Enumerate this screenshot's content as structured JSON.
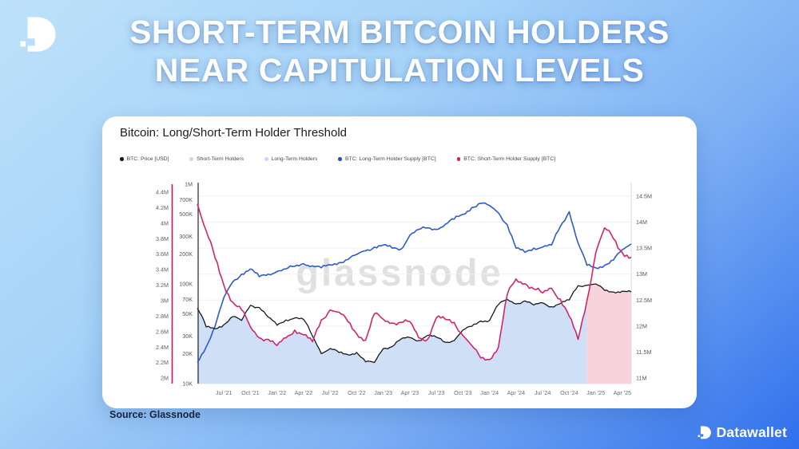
{
  "header": {
    "title_line1": "SHORT-TERM BITCOIN HOLDERS",
    "title_line2": "NEAR CAPITULATION LEVELS"
  },
  "card": {
    "title": "Bitcoin: Long/Short-Term Holder Threshold",
    "watermark": "glassnode"
  },
  "legend": {
    "items": [
      {
        "label": "BTC: Price [USD]",
        "color": "#17181c"
      },
      {
        "label": "Short-Term Holders",
        "color": "#f0ccd6"
      },
      {
        "label": "Long-Term Holders",
        "color": "#c9d9f3"
      },
      {
        "label": "BTC: Long-Term Holder Supply [BTC]",
        "color": "#2450c0"
      },
      {
        "label": "BTC: Short-Term Holder Supply [BTC]",
        "color": "#d02568"
      }
    ]
  },
  "footer": {
    "source": "Source: Glassnode",
    "brand": "Datawallet"
  },
  "chart_data": {
    "type": "line",
    "time": {
      "start": "2021-04",
      "end": "2025-05",
      "interval": "monthly"
    },
    "x_tick_labels": [
      "Jul '21",
      "Oct '21",
      "Jan '22",
      "Apr '22",
      "Jul '22",
      "Oct '22",
      "Jan '23",
      "Apr '23",
      "Jul '23",
      "Oct '23",
      "Jan '24",
      "Apr '24",
      "Jul '24",
      "Oct '24",
      "Jan '25",
      "Apr '25"
    ],
    "axes": {
      "left_outer": {
        "name": "BTC: Short-Term Holder Supply [BTC]",
        "unit": "million BTC",
        "scale": "linear",
        "range": [
          2.0,
          4.4
        ],
        "color": "#c2185b",
        "ticks": [
          {
            "label": "4.4M",
            "v": 4.4
          },
          {
            "label": "4.2M",
            "v": 4.2
          },
          {
            "label": "4M",
            "v": 4.0
          },
          {
            "label": "3.8M",
            "v": 3.8
          },
          {
            "label": "3.6M",
            "v": 3.6
          },
          {
            "label": "3.4M",
            "v": 3.4
          },
          {
            "label": "3.2M",
            "v": 3.2
          },
          {
            "label": "3M",
            "v": 3.0
          },
          {
            "label": "2.8M",
            "v": 2.8
          },
          {
            "label": "2.6M",
            "v": 2.6
          },
          {
            "label": "2.4M",
            "v": 2.4
          },
          {
            "label": "2.2M",
            "v": 2.2
          },
          {
            "label": "2M",
            "v": 2.0
          }
        ]
      },
      "left_inner": {
        "name": "BTC: Price [USD]",
        "scale": "log",
        "range": [
          10000,
          1000000
        ],
        "ticks": [
          {
            "label": "1M",
            "v": 1000000
          },
          {
            "label": "700K",
            "v": 700000
          },
          {
            "label": "500K",
            "v": 500000
          },
          {
            "label": "300K",
            "v": 300000
          },
          {
            "label": "200K",
            "v": 200000
          },
          {
            "label": "100K",
            "v": 100000
          },
          {
            "label": "70K",
            "v": 70000
          },
          {
            "label": "50K",
            "v": 50000
          },
          {
            "label": "30K",
            "v": 30000
          },
          {
            "label": "20K",
            "v": 20000
          },
          {
            "label": "10K",
            "v": 10000
          }
        ]
      },
      "right": {
        "name": "BTC: Long-Term Holder Supply [BTC]",
        "unit": "million BTC",
        "scale": "linear",
        "range": [
          11.0,
          14.5
        ],
        "ticks": [
          {
            "label": "14.5M",
            "v": 14.5
          },
          {
            "label": "14M",
            "v": 14.0
          },
          {
            "label": "13.5M",
            "v": 13.5
          },
          {
            "label": "13M",
            "v": 13.0
          },
          {
            "label": "12.5M",
            "v": 12.5
          },
          {
            "label": "12M",
            "v": 12.0
          },
          {
            "label": "11.5M",
            "v": 11.5
          },
          {
            "label": "11M",
            "v": 11.0
          }
        ]
      }
    },
    "series": [
      {
        "name": "BTC: Price [USD]",
        "axis": "left_inner",
        "color": "#17181c",
        "values": [
          57000,
          37000,
          35500,
          39000,
          47000,
          43000,
          61000,
          58000,
          46500,
          38500,
          43500,
          45500,
          44000,
          30000,
          20000,
          22500,
          20500,
          19500,
          20500,
          16500,
          16300,
          22500,
          23500,
          28000,
          29000,
          27000,
          30500,
          29200,
          26000,
          27000,
          34500,
          37500,
          42500,
          43000,
          62000,
          70000,
          63000,
          67500,
          61500,
          64500,
          59000,
          63500,
          69000,
          96000,
          97000,
          100000,
          86000,
          83000,
          84500,
          83000
        ]
      },
      {
        "name": "BTC: Long-Term Holder Supply [BTC]",
        "axis": "right",
        "color": "#2e5bc6",
        "values": [
          11.3,
          11.6,
          12.0,
          12.55,
          12.85,
          13.0,
          13.1,
          12.95,
          13.0,
          13.05,
          13.1,
          13.15,
          13.2,
          13.16,
          13.12,
          13.18,
          13.22,
          13.28,
          13.38,
          13.45,
          13.52,
          13.56,
          13.5,
          13.48,
          13.75,
          13.86,
          13.89,
          13.86,
          13.96,
          14.06,
          14.15,
          14.28,
          14.36,
          14.32,
          14.18,
          13.95,
          13.5,
          13.42,
          13.5,
          13.52,
          13.56,
          13.92,
          14.2,
          13.6,
          13.17,
          13.12,
          13.17,
          13.27,
          13.47,
          13.58
        ]
      },
      {
        "name": "BTC: Short-Term Holder Supply [BTC]",
        "axis": "left_outer",
        "color": "#d02568",
        "values": [
          4.25,
          3.9,
          3.55,
          3.2,
          2.98,
          2.88,
          2.66,
          2.52,
          2.5,
          2.42,
          2.52,
          2.62,
          2.56,
          2.47,
          2.75,
          2.88,
          2.85,
          2.73,
          2.57,
          2.49,
          2.83,
          2.76,
          2.71,
          2.72,
          2.73,
          2.52,
          2.5,
          2.78,
          2.76,
          2.72,
          2.55,
          2.42,
          2.26,
          2.24,
          2.4,
          3.08,
          3.28,
          3.22,
          3.15,
          3.1,
          3.16,
          3.02,
          2.8,
          2.5,
          3.0,
          3.62,
          3.94,
          3.8,
          3.62,
          3.56
        ]
      }
    ],
    "regime_fills": [
      {
        "name": "Long-Term Holders",
        "color": "#cfdff6",
        "from": "2021-04",
        "to": "2024-12"
      },
      {
        "name": "Short-Term Holders",
        "color": "#f8d3db",
        "from": "2024-12",
        "to": "2025-05"
      }
    ],
    "boundary_index": 44
  }
}
